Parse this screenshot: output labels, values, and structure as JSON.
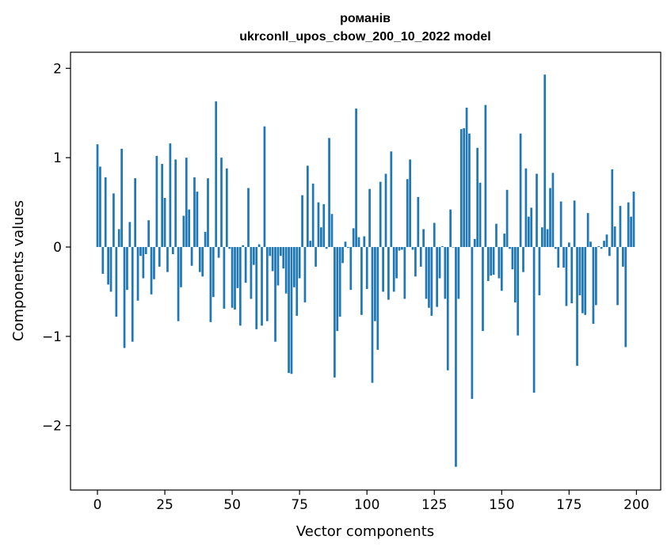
{
  "chart_data": {
    "type": "bar",
    "title": "романів",
    "subtitle": "ukrconll_upos_cbow_200_10_2022 model",
    "xlabel": "Vector components",
    "ylabel": "Components values",
    "xlim": [
      -10,
      209
    ],
    "ylim": [
      -2.72,
      2.18
    ],
    "xticks": [
      0,
      25,
      50,
      75,
      100,
      125,
      150,
      175,
      200
    ],
    "yticks": [
      -2,
      -1,
      0,
      1,
      2
    ],
    "xtick_labels": [
      "0",
      "25",
      "50",
      "75",
      "100",
      "125",
      "150",
      "175",
      "200"
    ],
    "ytick_labels": [
      "−2",
      "−1",
      "0",
      "1",
      "2"
    ],
    "grid": false,
    "bar_color": "#1f77b4",
    "x": [
      0,
      1,
      2,
      3,
      4,
      5,
      6,
      7,
      8,
      9,
      10,
      11,
      12,
      13,
      14,
      15,
      16,
      17,
      18,
      19,
      20,
      21,
      22,
      23,
      24,
      25,
      26,
      27,
      28,
      29,
      30,
      31,
      32,
      33,
      34,
      35,
      36,
      37,
      38,
      39,
      40,
      41,
      42,
      43,
      44,
      45,
      46,
      47,
      48,
      49,
      50,
      51,
      52,
      53,
      54,
      55,
      56,
      57,
      58,
      59,
      60,
      61,
      62,
      63,
      64,
      65,
      66,
      67,
      68,
      69,
      70,
      71,
      72,
      73,
      74,
      75,
      76,
      77,
      78,
      79,
      80,
      81,
      82,
      83,
      84,
      85,
      86,
      87,
      88,
      89,
      90,
      91,
      92,
      93,
      94,
      95,
      96,
      97,
      98,
      99,
      100,
      101,
      102,
      103,
      104,
      105,
      106,
      107,
      108,
      109,
      110,
      111,
      112,
      113,
      114,
      115,
      116,
      117,
      118,
      119,
      120,
      121,
      122,
      123,
      124,
      125,
      126,
      127,
      128,
      129,
      130,
      131,
      132,
      133,
      134,
      135,
      136,
      137,
      138,
      139,
      140,
      141,
      142,
      143,
      144,
      145,
      146,
      147,
      148,
      149,
      150,
      151,
      152,
      153,
      154,
      155,
      156,
      157,
      158,
      159,
      160,
      161,
      162,
      163,
      164,
      165,
      166,
      167,
      168,
      169,
      170,
      171,
      172,
      173,
      174,
      175,
      176,
      177,
      178,
      179,
      180,
      181,
      182,
      183,
      184,
      185,
      186,
      187,
      188,
      189,
      190,
      191,
      192,
      193,
      194,
      195,
      196,
      197,
      198,
      199
    ],
    "values": [
      1.15,
      0.9,
      -0.3,
      0.78,
      -0.42,
      -0.5,
      0.6,
      -0.78,
      0.2,
      1.1,
      -1.13,
      -0.48,
      0.28,
      -1.06,
      0.77,
      -0.6,
      -0.1,
      -0.35,
      -0.08,
      0.3,
      -0.53,
      -0.36,
      1.02,
      -0.22,
      0.93,
      0.55,
      -0.28,
      1.16,
      -0.08,
      0.98,
      -0.83,
      -0.45,
      0.35,
      1.0,
      0.42,
      -0.21,
      0.78,
      0.62,
      -0.28,
      -0.33,
      0.17,
      0.77,
      -0.84,
      -0.56,
      1.63,
      -0.12,
      1.0,
      -0.69,
      0.88,
      -0.02,
      -0.68,
      -0.7,
      -0.46,
      -0.88,
      0.02,
      -0.4,
      0.66,
      -0.58,
      -0.2,
      -0.92,
      0.03,
      -0.88,
      1.35,
      -0.83,
      -0.1,
      -0.27,
      -1.06,
      -0.43,
      -0.1,
      -0.24,
      -0.52,
      -1.41,
      -1.42,
      -0.45,
      -0.77,
      -0.35,
      0.58,
      -0.62,
      0.91,
      0.07,
      0.71,
      -0.22,
      0.5,
      0.22,
      0.48,
      -0.02,
      1.22,
      0.37,
      -1.46,
      -0.94,
      -0.78,
      -0.18,
      0.06,
      -0.01,
      -0.48,
      0.21,
      1.55,
      0.11,
      -0.76,
      0.12,
      -0.47,
      0.65,
      -1.52,
      -0.83,
      -1.15,
      0.73,
      -0.5,
      0.82,
      -0.59,
      1.07,
      -0.5,
      -0.35,
      -0.04,
      -0.03,
      -0.58,
      0.76,
      0.98,
      -0.03,
      -0.33,
      0.56,
      -0.22,
      0.2,
      -0.58,
      -0.68,
      -0.77,
      0.27,
      -0.67,
      -0.35,
      0.01,
      -0.58,
      -1.38,
      0.42,
      0.0,
      -2.46,
      -0.58,
      1.32,
      1.33,
      1.56,
      1.27,
      -1.7,
      0.09,
      1.11,
      0.72,
      -0.94,
      1.59,
      -0.38,
      -0.32,
      -0.31,
      0.26,
      -0.35,
      -0.49,
      0.15,
      0.64,
      -0.02,
      -0.25,
      -0.62,
      -0.99,
      1.27,
      -0.28,
      0.88,
      0.34,
      0.44,
      -1.63,
      0.82,
      -0.54,
      0.22,
      1.93,
      0.2,
      0.66,
      0.83,
      -0.02,
      -0.23,
      0.51,
      -0.23,
      -0.66,
      0.05,
      -0.63,
      0.52,
      -1.33,
      -0.54,
      -0.74,
      -0.76,
      0.38,
      0.06,
      -0.86,
      -0.65,
      0.01,
      -0.02,
      0.07,
      0.14,
      -0.1,
      0.87,
      0.23,
      -0.65,
      0.46,
      -0.22,
      -1.12,
      0.5,
      0.34,
      0.62
    ]
  }
}
